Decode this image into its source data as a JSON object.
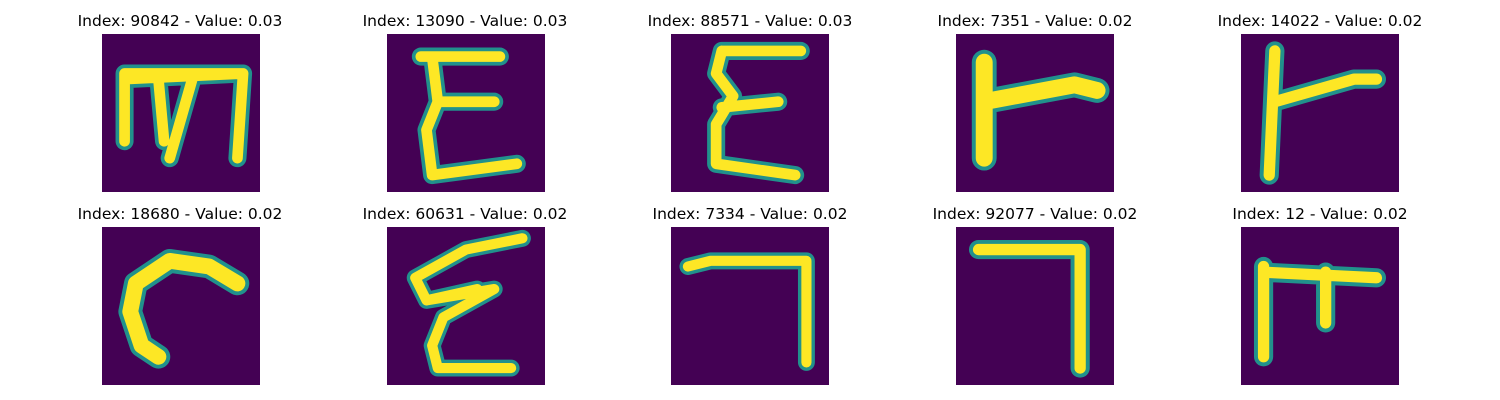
{
  "colors": {
    "background": "#440154",
    "stroke_edge": "#21918c",
    "stroke_mid": "#5ec962",
    "stroke_core": "#fde725"
  },
  "panels": [
    {
      "title": "Index: 90842 - Value: 0.03",
      "glyph": "m-shape"
    },
    {
      "title": "Index: 13090 - Value: 0.03",
      "glyph": "e-shape"
    },
    {
      "title": "Index: 88571 - Value: 0.03",
      "glyph": "epsilon-shape"
    },
    {
      "title": "Index: 7351 - Value: 0.02",
      "glyph": "tack-shape"
    },
    {
      "title": "Index: 14022 - Value: 0.02",
      "glyph": "tack-shape"
    },
    {
      "title": "Index: 18680 - Value: 0.02",
      "glyph": "c-shape"
    },
    {
      "title": "Index: 60631 - Value: 0.02",
      "glyph": "epsilon-shape"
    },
    {
      "title": "Index: 7334 - Value: 0.02",
      "glyph": "seven-shape"
    },
    {
      "title": "Index: 92077 - Value: 0.02",
      "glyph": "seven-shape"
    },
    {
      "title": "Index: 12 - Value: 0.02",
      "glyph": "pi-shape"
    }
  ]
}
